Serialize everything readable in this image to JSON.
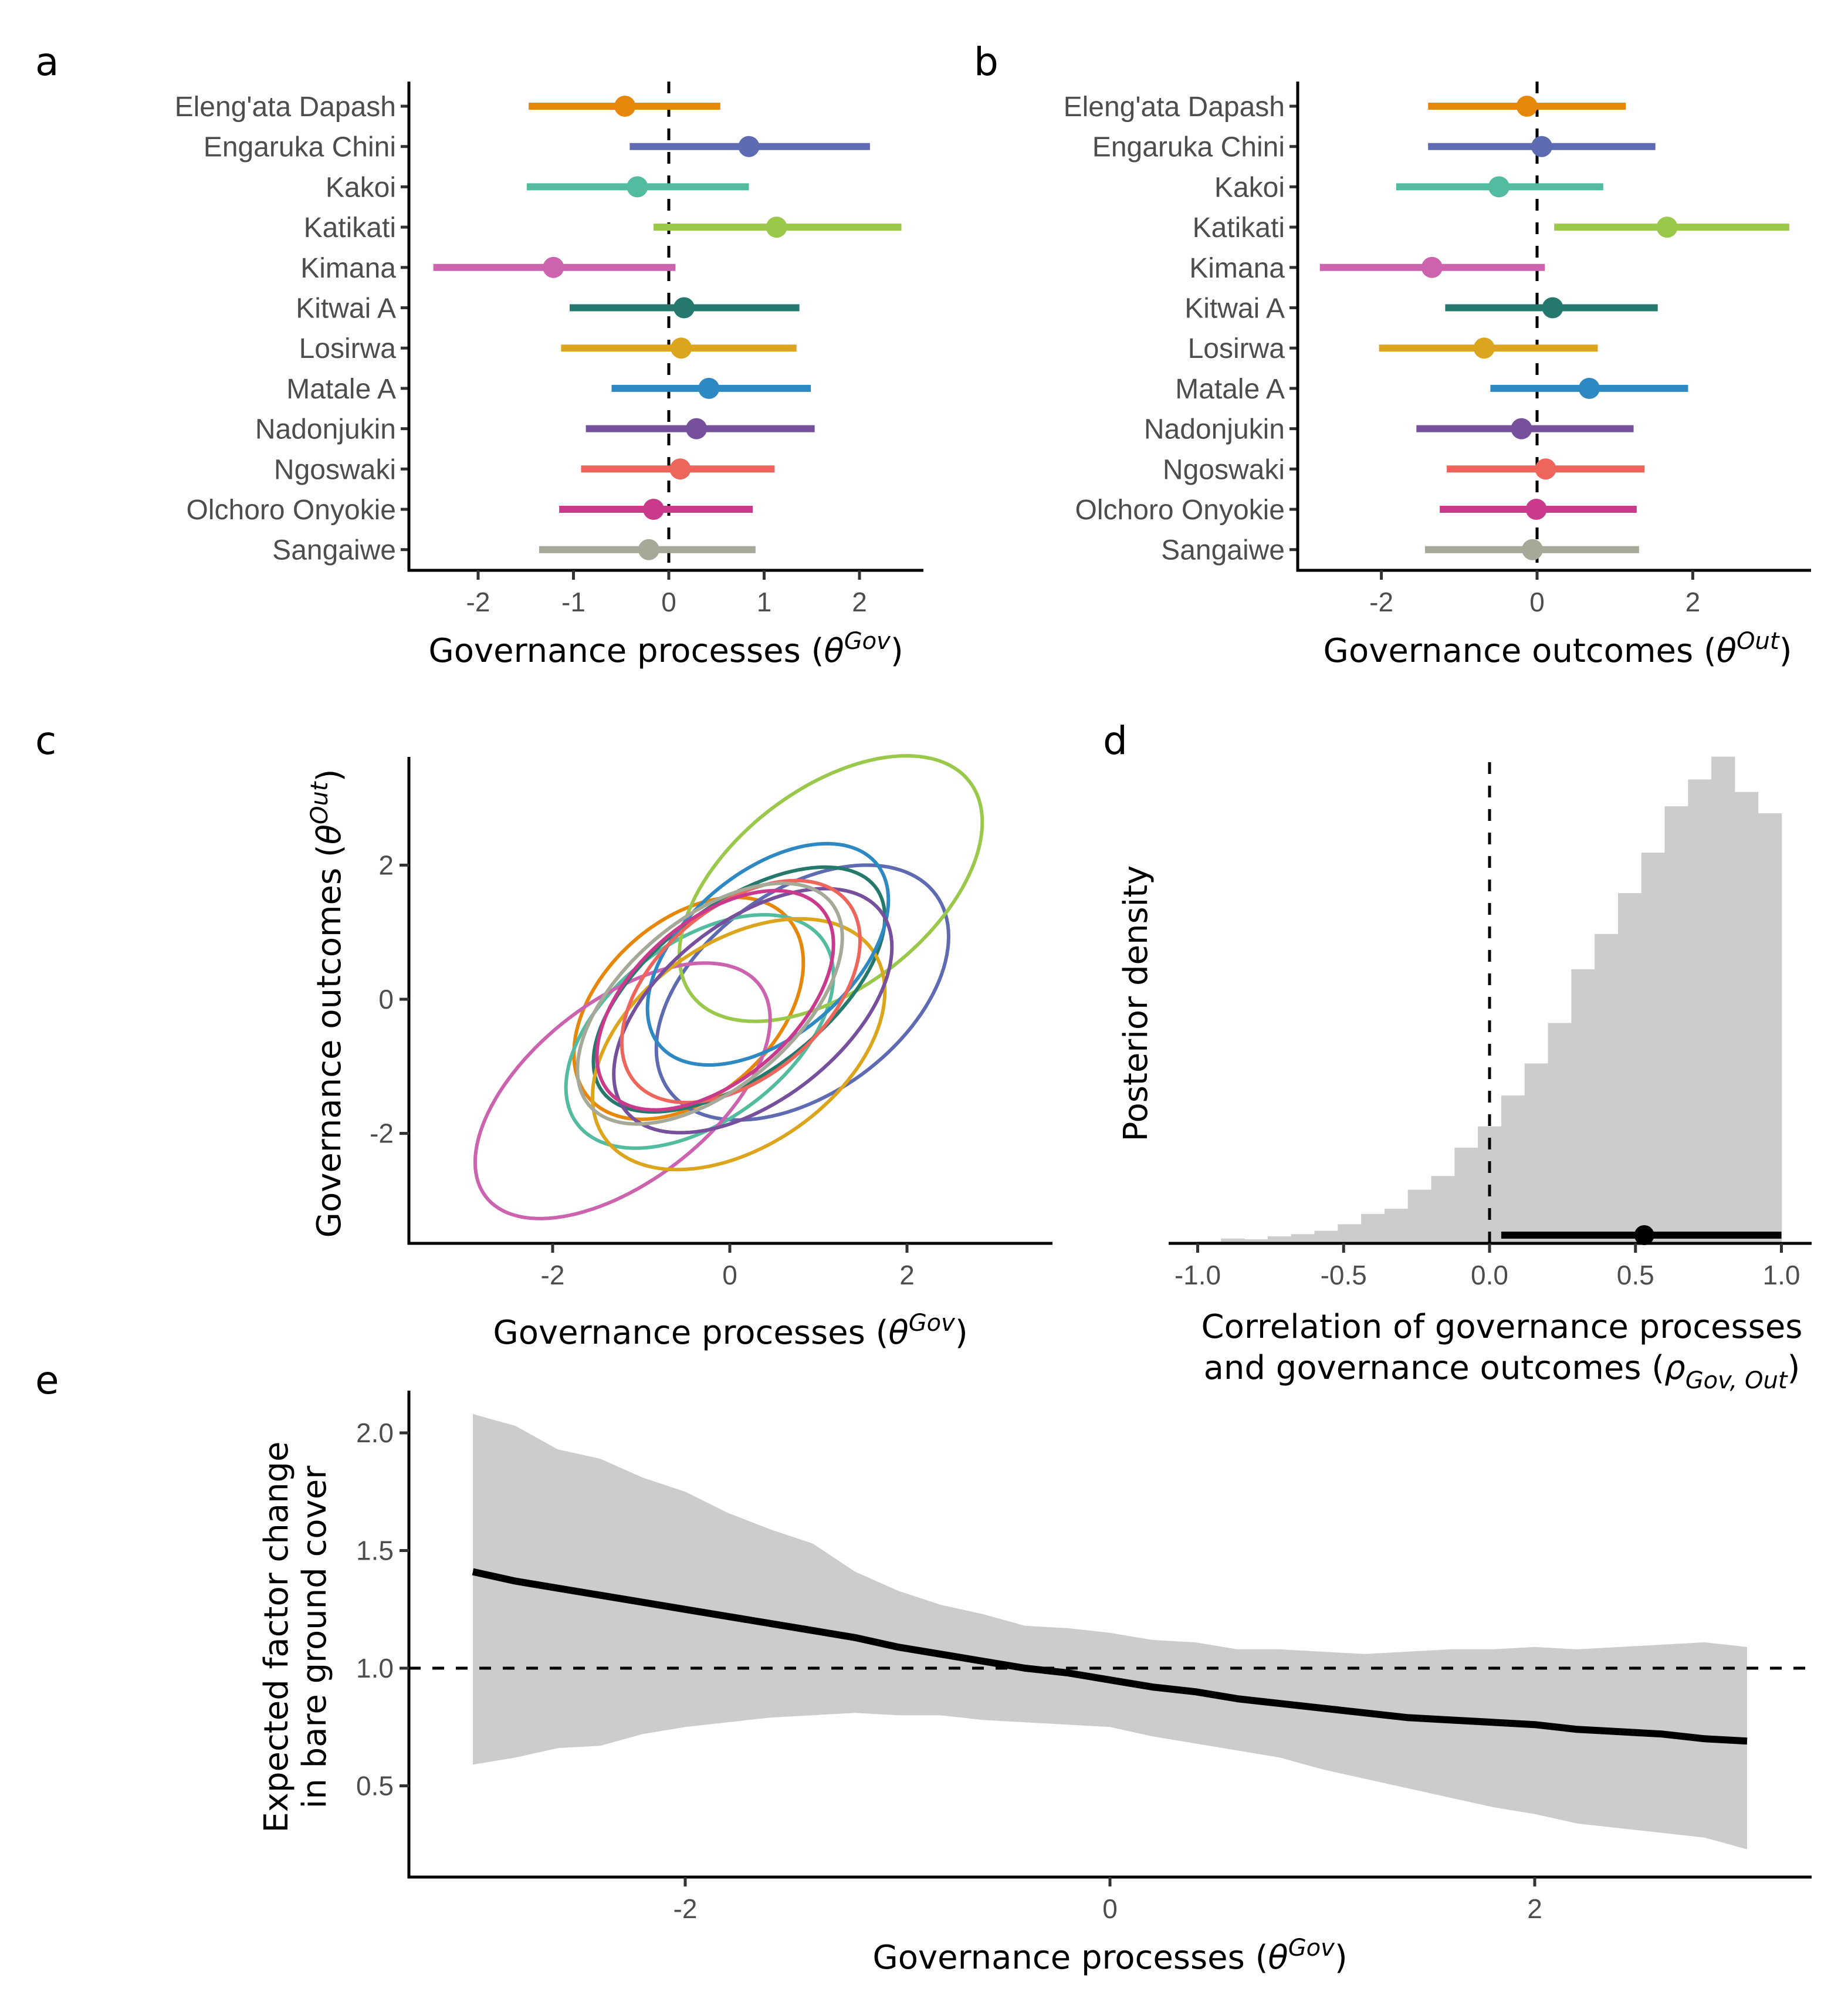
{
  "figure": {
    "panel_letters": [
      "a",
      "b",
      "c",
      "d",
      "e"
    ]
  },
  "colors": {
    "Eleng'ata Dapash": "#E6870A",
    "Engaruka Chini": "#5E6BB2",
    "Kakoi": "#52BBA0",
    "Katikati": "#9AC84A",
    "Kimana": "#CB63AF",
    "Kitwai A": "#24786C",
    "Losirwa": "#DBA61D",
    "Matale A": "#2E89C2",
    "Nadonjukin": "#764F9D",
    "Ngoswaki": "#EE655C",
    "Olchoro Onyokie": "#CA3A8C",
    "Sangaiwe": "#A6A898",
    "ribbon": "#CCCCCC",
    "histogram": "#CCCCCC",
    "ink": "#000000",
    "tick_text": "#4D4D4D"
  },
  "chart_data": [
    {
      "id": "a",
      "type": "scatter",
      "subtype": "point-interval",
      "title": "",
      "xlabel": "Governance processes (θ^Gov)",
      "xlabel_main": "Governance processes (",
      "xlabel_symbol": "θ",
      "xlabel_sup": "Gov",
      "xlabel_close": ")",
      "ylabel": "",
      "xlim": [
        -2.7,
        2.7
      ],
      "xticks": [
        -2,
        -1,
        0,
        1,
        2
      ],
      "xtick_labels": [
        "-2",
        "-1",
        "0",
        "1",
        "2"
      ],
      "reference_line": {
        "x": 0,
        "style": "dashed"
      },
      "categories": [
        "Eleng'ata Dapash",
        "Engaruka Chini",
        "Kakoi",
        "Katikati",
        "Kimana",
        "Kitwai A",
        "Losirwa",
        "Matale A",
        "Nadonjukin",
        "Ngoswaki",
        "Olchoro Onyokie",
        "Sangaiwe"
      ],
      "estimate": [
        -0.46,
        0.84,
        -0.33,
        1.13,
        -1.21,
        0.16,
        0.13,
        0.42,
        0.29,
        0.12,
        -0.16,
        -0.21
      ],
      "lower": [
        -1.47,
        -0.41,
        -1.49,
        -0.16,
        -2.47,
        -1.04,
        -1.13,
        -0.6,
        -0.87,
        -0.92,
        -1.15,
        -1.36
      ],
      "upper": [
        0.54,
        2.11,
        0.84,
        2.44,
        0.07,
        1.37,
        1.34,
        1.49,
        1.53,
        1.11,
        0.88,
        0.91
      ]
    },
    {
      "id": "b",
      "type": "scatter",
      "subtype": "point-interval",
      "title": "",
      "xlabel": "Governance outcomes (θ^Out)",
      "xlabel_main": "Governance outcomes (",
      "xlabel_symbol": "θ",
      "xlabel_sup": "Out",
      "xlabel_close": ")",
      "ylabel": "",
      "xlim": [
        -3.1,
        3.5
      ],
      "xticks": [
        -2,
        0,
        2
      ],
      "xtick_labels": [
        "-2",
        "0",
        "2"
      ],
      "reference_line": {
        "x": 0,
        "style": "dashed"
      },
      "categories": [
        "Eleng'ata Dapash",
        "Engaruka Chini",
        "Kakoi",
        "Katikati",
        "Kimana",
        "Kitwai A",
        "Losirwa",
        "Matale A",
        "Nadonjukin",
        "Ngoswaki",
        "Olchoro Onyokie",
        "Sangaiwe"
      ],
      "estimate": [
        -0.13,
        0.06,
        -0.49,
        1.67,
        -1.35,
        0.2,
        -0.68,
        0.67,
        -0.2,
        0.11,
        -0.01,
        -0.06
      ],
      "lower": [
        -1.4,
        -1.4,
        -1.81,
        0.22,
        -2.79,
        -1.18,
        -2.03,
        -0.6,
        -1.55,
        -1.16,
        -1.25,
        -1.44
      ],
      "upper": [
        1.14,
        1.52,
        0.85,
        3.24,
        0.1,
        1.55,
        0.78,
        1.94,
        1.24,
        1.38,
        1.28,
        1.31
      ]
    },
    {
      "id": "c",
      "type": "scatter",
      "subtype": "ellipses",
      "title": "",
      "xlabel": "Governance processes (θ^Gov)",
      "xlabel_main": "Governance processes (",
      "xlabel_symbol": "θ",
      "xlabel_sup": "Gov",
      "xlabel_close": ")",
      "ylabel": "Governance outcomes (θ^Out)",
      "ylabel_main": "Governance outcomes (",
      "ylabel_symbol": "θ",
      "ylabel_sup": "Out",
      "ylabel_close": ")",
      "xlim": [
        -3.6,
        3.6
      ],
      "ylim": [
        -3.6,
        3.65
      ],
      "xticks": [
        -2,
        0,
        2
      ],
      "xtick_labels": [
        "-2",
        "0",
        "2"
      ],
      "yticks": [
        -2,
        0,
        2
      ],
      "ytick_labels": [
        "-2",
        "0",
        "2"
      ],
      "ellipses": [
        {
          "name": "Eleng'ata Dapash",
          "cx": -0.465,
          "cy": -0.135,
          "rx": 1.295,
          "ry": 1.655,
          "rho": 0.41
        },
        {
          "name": "Engaruka Chini",
          "cx": 0.82,
          "cy": 0.1,
          "rx": 1.65,
          "ry": 1.9,
          "rho": 0.44
        },
        {
          "name": "Kakoi",
          "cx": -0.34,
          "cy": -0.48,
          "rx": 1.51,
          "ry": 1.74,
          "rho": 0.48
        },
        {
          "name": "Katikati",
          "cx": 1.14,
          "cy": 1.65,
          "rx": 1.71,
          "ry": 1.98,
          "rho": 0.5
        },
        {
          "name": "Kimana",
          "cx": -1.21,
          "cy": -1.365,
          "rx": 1.665,
          "ry": 1.905,
          "rho": 0.56
        },
        {
          "name": "Kitwai A",
          "cx": 0.105,
          "cy": 0.145,
          "rx": 1.645,
          "ry": 1.825,
          "rho": 0.59
        },
        {
          "name": "Losirwa",
          "cx": 0.1,
          "cy": -0.67,
          "rx": 1.65,
          "ry": 1.87,
          "rho": 0.42
        },
        {
          "name": "Matale A",
          "cx": 0.43,
          "cy": 0.67,
          "rx": 1.36,
          "ry": 1.65,
          "rho": 0.49
        },
        {
          "name": "Nadonjukin",
          "cx": 0.26,
          "cy": -0.17,
          "rx": 1.57,
          "ry": 1.82,
          "rho": 0.52
        },
        {
          "name": "Ngoswaki",
          "cx": 0.125,
          "cy": 0.115,
          "rx": 1.345,
          "ry": 1.655,
          "rho": 0.46
        },
        {
          "name": "Olchoro Onyokie",
          "cx": -0.165,
          "cy": -0.015,
          "rx": 1.335,
          "ry": 1.635,
          "rho": 0.51
        },
        {
          "name": "Sangaiwe",
          "cx": -0.225,
          "cy": -0.065,
          "rx": 1.495,
          "ry": 1.795,
          "rho": 0.55
        }
      ]
    },
    {
      "id": "d",
      "type": "bar",
      "subtype": "histogram",
      "title": "",
      "xlabel": "Correlation of governance processes and governance outcomes (ρ_Gov, Out)",
      "xlabel_line1": "Correlation of governance processes",
      "xlabel_line2_main": "and governance outcomes (",
      "xlabel_line2_symbol": "ρ",
      "xlabel_line2_sub": "Gov, Out",
      "xlabel_line2_close": ")",
      "ylabel": "Posterior density",
      "xlim": [
        -1.1,
        1.1
      ],
      "xticks": [
        -1.0,
        -0.5,
        0.0,
        0.5,
        1.0
      ],
      "xtick_labels": [
        "-1.0",
        "-0.5",
        "0.0",
        "0.5",
        "1.0"
      ],
      "reference_line": {
        "x": 0,
        "style": "dashed"
      },
      "bin_start": -1.0,
      "bin_width": 0.08,
      "density": [
        0.005,
        0.013,
        0.011,
        0.019,
        0.025,
        0.034,
        0.052,
        0.08,
        0.094,
        0.146,
        0.183,
        0.26,
        0.318,
        0.402,
        0.489,
        0.599,
        0.745,
        0.841,
        0.952,
        1.062,
        1.188,
        1.261,
        1.323,
        1.227,
        1.169
      ],
      "summary": {
        "point": 0.53,
        "lower": 0.04,
        "upper": 1.0
      }
    },
    {
      "id": "e",
      "type": "area",
      "subtype": "line-with-ribbon",
      "title": "",
      "xlabel": "Governance processes (θ^Gov)",
      "xlabel_main": "Governance processes (",
      "xlabel_symbol": "θ",
      "xlabel_sup": "Gov",
      "xlabel_close": ")",
      "ylabel": "Expected factor change in bare ground cover",
      "ylabel_line1": "Expected factor change",
      "ylabel_line2": "in bare ground cover",
      "xlim": [
        -3.3,
        3.3
      ],
      "ylim": [
        0.12,
        2.18
      ],
      "xticks": [
        -2,
        0,
        2
      ],
      "xtick_labels": [
        "-2",
        "0",
        "2"
      ],
      "yticks": [
        0.5,
        1.0,
        1.5,
        2.0
      ],
      "ytick_labels": [
        "0.5",
        "1.0",
        "1.5",
        "2.0"
      ],
      "reference_line": {
        "y": 1.0,
        "style": "dashed"
      },
      "x": [
        -3.0,
        -2.8,
        -2.6,
        -2.4,
        -2.2,
        -2.0,
        -1.8,
        -1.6,
        -1.4,
        -1.2,
        -1.0,
        -0.8,
        -0.6,
        -0.4,
        -0.2,
        0.0,
        0.2,
        0.4,
        0.6,
        0.8,
        1.0,
        1.2,
        1.4,
        1.6,
        1.8,
        2.0,
        2.2,
        2.4,
        2.6,
        2.8,
        3.0
      ],
      "mean": [
        1.41,
        1.37,
        1.34,
        1.31,
        1.28,
        1.25,
        1.22,
        1.19,
        1.16,
        1.13,
        1.09,
        1.06,
        1.03,
        1.0,
        0.98,
        0.95,
        0.92,
        0.9,
        0.87,
        0.85,
        0.83,
        0.81,
        0.79,
        0.78,
        0.77,
        0.76,
        0.74,
        0.73,
        0.72,
        0.7,
        0.69
      ],
      "upper": [
        2.08,
        2.03,
        1.93,
        1.89,
        1.81,
        1.75,
        1.66,
        1.59,
        1.53,
        1.41,
        1.33,
        1.27,
        1.23,
        1.18,
        1.17,
        1.15,
        1.12,
        1.11,
        1.08,
        1.08,
        1.07,
        1.06,
        1.07,
        1.08,
        1.08,
        1.09,
        1.08,
        1.09,
        1.1,
        1.11,
        1.09
      ],
      "lower": [
        0.59,
        0.62,
        0.66,
        0.67,
        0.72,
        0.75,
        0.77,
        0.79,
        0.8,
        0.81,
        0.8,
        0.8,
        0.78,
        0.77,
        0.76,
        0.75,
        0.71,
        0.68,
        0.65,
        0.62,
        0.57,
        0.53,
        0.49,
        0.45,
        0.41,
        0.38,
        0.34,
        0.32,
        0.3,
        0.28,
        0.23
      ]
    }
  ]
}
